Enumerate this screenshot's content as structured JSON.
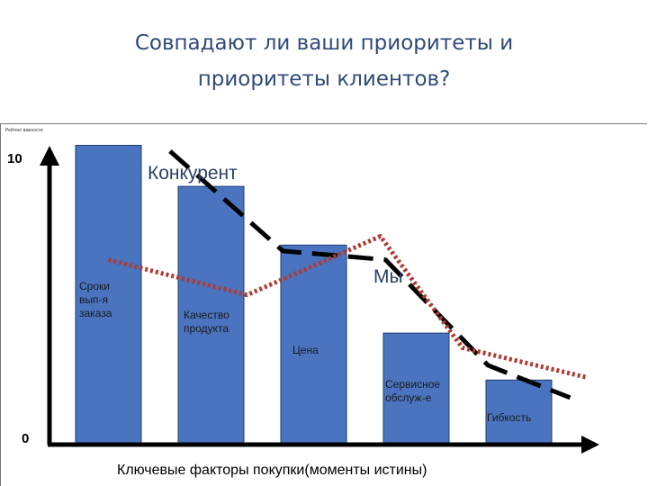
{
  "slide": {
    "title_line1": "Совпадают ли ваши приоритеты и",
    "title_line2": "приоритеты клиентов?",
    "corner_caption": "Рейтинг важности"
  },
  "chart_data": {
    "type": "bar",
    "title": "",
    "xlabel": "Ключевые факторы покупки(моменты истины)",
    "ylabel": "",
    "ylim": [
      0,
      10
    ],
    "y_tick_labels": [
      "0",
      "10"
    ],
    "categories": [
      "Сроки\nвып-я\nзаказа",
      "Качество\nпродукта",
      "Цена",
      "Сервисное\nобслуж-е",
      "Гибкость"
    ],
    "values": [
      10.2,
      8.8,
      6.8,
      3.8,
      2.2
    ],
    "bar_color": "#4a74c0",
    "series": [
      {
        "name": "Конкурент",
        "style": "dashed",
        "color": "#000000",
        "points": [
          [
            0.6,
            10.0
          ],
          [
            1.7,
            6.6
          ],
          [
            2.7,
            6.3
          ],
          [
            3.7,
            2.7
          ],
          [
            4.5,
            1.6
          ]
        ]
      },
      {
        "name": "Мы",
        "style": "dotted",
        "color": "#b03a30",
        "points": [
          [
            0.0,
            6.3
          ],
          [
            1.35,
            5.1
          ],
          [
            2.65,
            7.1
          ],
          [
            3.45,
            3.3
          ],
          [
            4.65,
            2.3
          ]
        ]
      }
    ]
  }
}
